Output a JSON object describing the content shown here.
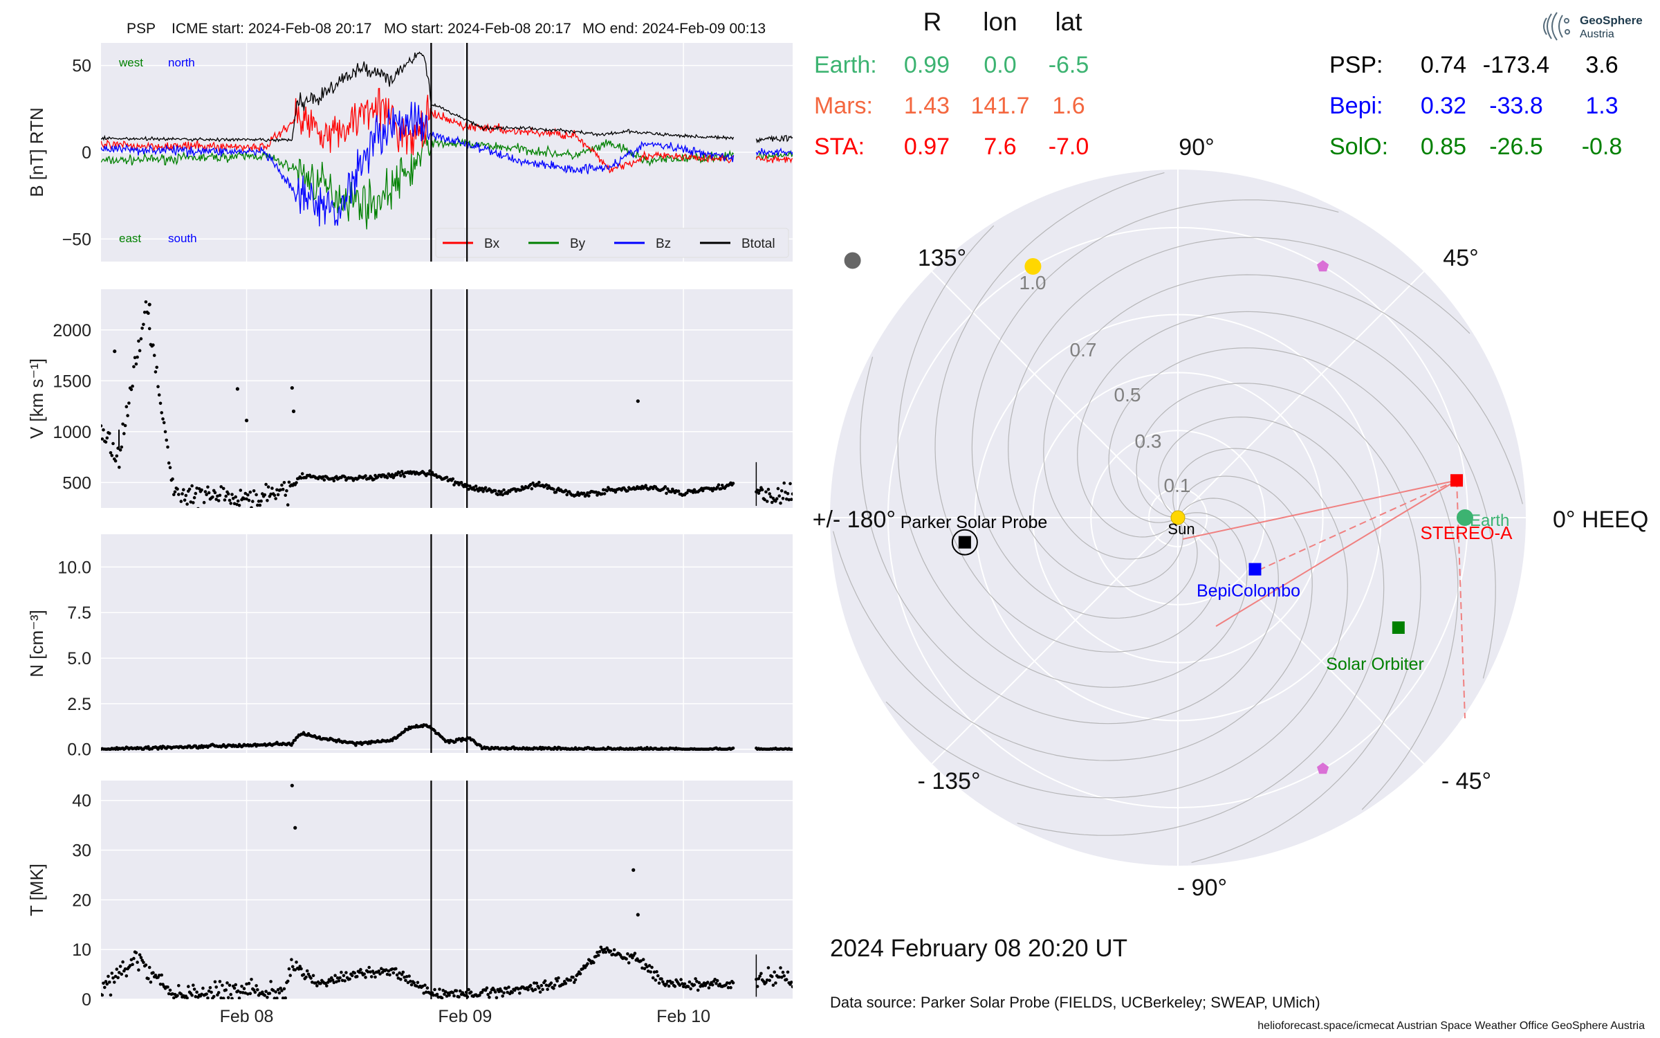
{
  "header": {
    "spacecraft": "PSP",
    "icme_start": "ICME start: 2024-Feb-08 20:17",
    "mo_start": "MO start: 2024-Feb-08 20:17",
    "mo_end": "MO end: 2024-Feb-09 00:13"
  },
  "logo": {
    "line1": "GeoSphere",
    "line2": "Austria"
  },
  "positions_table": {
    "columns": [
      "R",
      "lon",
      "lat"
    ],
    "left": [
      {
        "name": "Earth:",
        "r": "0.99",
        "lon": "0.0",
        "lat": "-6.5",
        "color": "#3cb371"
      },
      {
        "name": "Mars:",
        "r": "1.43",
        "lon": "141.7",
        "lat": "1.6",
        "color": "#f4673f"
      },
      {
        "name": "STA:",
        "r": "0.97",
        "lon": "7.6",
        "lat": "-7.0",
        "color": "#ff0000"
      }
    ],
    "right": [
      {
        "name": "PSP:",
        "r": "0.74",
        "lon": "-173.4",
        "lat": "3.6",
        "color": "#000000"
      },
      {
        "name": "Bepi:",
        "r": "0.32",
        "lon": "-33.8",
        "lat": "1.3",
        "color": "#0000ff"
      },
      {
        "name": "SolO:",
        "r": "0.85",
        "lon": "-26.5",
        "lat": "-0.8",
        "color": "#008000"
      }
    ]
  },
  "footer": {
    "timestamp": "2024 February 08  20:20 UT",
    "data_source": "Data source: Parker Solar Probe (FIELDS, UCBerkeley; SWEAP, UMich)",
    "credits": "helioforecast.space/icmecat   Austrian Space Weather Office   GeoSphere Austria"
  },
  "colors": {
    "bx": "#ff0000",
    "by": "#008000",
    "bz": "#0000ff",
    "btotal": "#000000",
    "panel_bg": "#eaeaf2",
    "grid": "#ffffff"
  },
  "chart_data": [
    {
      "type": "line",
      "xlabel": "",
      "ylabel": "B [nT] RTN",
      "x_range": [
        "2024-02-07 08:00",
        "2024-02-10 12:00"
      ],
      "ylim": [
        -63,
        63
      ],
      "yticks": [
        -50,
        0,
        50
      ],
      "xticks": [
        "Feb 08",
        "Feb 09",
        "Feb 10"
      ],
      "annotations": {
        "west": "west",
        "north": "north",
        "east": "east",
        "south": "south"
      },
      "event_lines": [
        "2024-02-08 20:17",
        "2024-02-09 00:13"
      ],
      "legend": {
        "placement": "bottom-right",
        "entries": [
          "Bx",
          "By",
          "Bz",
          "Btotal"
        ]
      },
      "series": [
        {
          "name": "Btotal",
          "color": "#000000",
          "x": [
            "02-07 08:00",
            "02-08 02:00",
            "02-08 05:00",
            "02-08 05:30",
            "02-08 08:00",
            "02-08 10:00",
            "02-08 13:00",
            "02-08 16:00",
            "02-08 18:00",
            "02-08 19:30",
            "02-08 20:17",
            "02-08 22:00",
            "02-09 02:00",
            "02-09 06:00",
            "02-09 12:00",
            "02-09 15:00",
            "02-09 18:00",
            "02-09 22:00",
            "02-10 05:30"
          ],
          "values": [
            8,
            7,
            7,
            28,
            32,
            40,
            49,
            42,
            55,
            57,
            28,
            24,
            14,
            14,
            12,
            10,
            12,
            10,
            8
          ]
        },
        {
          "name": "Bx",
          "color": "#ff0000",
          "x": [
            "02-07 08:00",
            "02-08 02:00",
            "02-08 05:30",
            "02-08 10:00",
            "02-08 14:00",
            "02-08 18:00",
            "02-08 20:17",
            "02-09 00:00",
            "02-09 06:00",
            "02-09 12:00",
            "02-09 16:00",
            "02-09 20:00",
            "02-10 05:30"
          ],
          "values": [
            4,
            3,
            20,
            10,
            30,
            5,
            22,
            15,
            12,
            10,
            -10,
            -2,
            -4
          ]
        },
        {
          "name": "By",
          "color": "#008000",
          "x": [
            "02-07 08:00",
            "02-08 02:00",
            "02-08 05:30",
            "02-08 10:00",
            "02-08 14:00",
            "02-08 18:00",
            "02-08 20:17",
            "02-09 00:00",
            "02-09 06:00",
            "02-09 12:00",
            "02-09 16:00",
            "02-09 20:00",
            "02-10 05:30"
          ],
          "values": [
            -5,
            -2,
            -10,
            -25,
            -30,
            -10,
            5,
            5,
            2,
            -2,
            5,
            -5,
            -2
          ]
        },
        {
          "name": "Bz",
          "color": "#0000ff",
          "x": [
            "02-07 08:00",
            "02-08 02:00",
            "02-08 05:30",
            "02-08 10:00",
            "02-08 14:00",
            "02-08 18:00",
            "02-08 20:17",
            "02-09 00:00",
            "02-09 06:00",
            "02-09 12:00",
            "02-09 16:00",
            "02-09 20:00",
            "02-10 05:30"
          ],
          "values": [
            2,
            0,
            -25,
            -35,
            10,
            20,
            10,
            5,
            -5,
            -10,
            -8,
            5,
            -3
          ]
        }
      ]
    },
    {
      "type": "scatter",
      "ylabel": "V [km s⁻¹]",
      "ylim": [
        250,
        2400
      ],
      "yticks": [
        500,
        1000,
        1500,
        2000
      ],
      "series": [
        {
          "name": "",
          "x": [
            "02-07 08:00",
            "02-07 10:00",
            "02-07 13:00",
            "02-07 16:00",
            "02-07 20:00",
            "02-08 00:00",
            "02-08 04:00",
            "02-08 06:00",
            "02-08 10:00",
            "02-08 14:00",
            "02-08 18:00",
            "02-08 20:17",
            "02-09 00:00",
            "02-09 04:00",
            "02-09 08:00",
            "02-09 12:00",
            "02-09 16:00",
            "02-09 20:00",
            "02-10 00:00",
            "02-10 05:30"
          ],
          "values": [
            1020,
            760,
            2250,
            380,
            360,
            330,
            380,
            560,
            540,
            550,
            600,
            590,
            460,
            400,
            480,
            380,
            420,
            450,
            400,
            480
          ]
        },
        {
          "name": "outliers",
          "x": [
            "02-07 09:30",
            "02-07 13:20",
            "02-07 23:00",
            "02-08 00:00",
            "02-08 05:00",
            "02-08 05:10",
            "02-09 19:00"
          ],
          "values": [
            1790,
            2250,
            1420,
            1110,
            1430,
            1200,
            1300
          ]
        }
      ]
    },
    {
      "type": "scatter",
      "ylabel": "N [cm⁻³]",
      "ylim": [
        -0.2,
        11.8
      ],
      "yticks": [
        0.0,
        2.5,
        5.0,
        7.5,
        10.0
      ],
      "series": [
        {
          "name": "",
          "x": [
            "02-07 08:00",
            "02-08 05:00",
            "02-08 06:00",
            "02-08 08:00",
            "02-08 12:00",
            "02-08 16:00",
            "02-08 18:00",
            "02-08 20:00",
            "02-08 22:00",
            "02-09 00:30",
            "02-09 02:00",
            "02-10 05:30"
          ],
          "values": [
            0,
            0.3,
            0.9,
            0.6,
            0.3,
            0.5,
            1.2,
            1.3,
            0.4,
            0.6,
            0.05,
            0
          ]
        }
      ]
    },
    {
      "type": "scatter",
      "ylabel": "T [MK]",
      "ylim": [
        0,
        44
      ],
      "yticks": [
        0,
        10,
        20,
        30,
        40
      ],
      "series": [
        {
          "name": "",
          "x": [
            "02-07 08:00",
            "02-07 12:00",
            "02-07 16:00",
            "02-07 20:00",
            "02-08 00:00",
            "02-08 04:00",
            "02-08 05:00",
            "02-08 08:00",
            "02-08 12:00",
            "02-08 16:00",
            "02-08 20:17",
            "02-09 00:00",
            "02-09 06:00",
            "02-09 12:00",
            "02-09 15:00",
            "02-09 19:00",
            "02-09 22:00",
            "02-10 05:30"
          ],
          "values": [
            2,
            8,
            1,
            1,
            2,
            1,
            7,
            3,
            5,
            6,
            1,
            1,
            2,
            4,
            10,
            8,
            3,
            3
          ]
        },
        {
          "name": "outliers",
          "x": [
            "02-08 05:00",
            "02-08 05:20",
            "02-09 18:30",
            "02-09 19:00"
          ],
          "values": [
            43,
            34.5,
            26,
            17
          ]
        }
      ]
    },
    {
      "type": "scatter",
      "title": "",
      "description_axis": "polar HEEQ longitude, radius in AU",
      "angle_labels": [
        "0° HEEQ",
        "45°",
        "90°",
        "135°",
        "+/- 180°",
        "- 135°",
        "- 90°",
        "- 45°"
      ],
      "radial_ticks": [
        "0.1",
        "0.3",
        "0.5",
        "0.7",
        "1.0"
      ],
      "rlim": [
        0,
        1.2
      ],
      "points": [
        {
          "name": "Sun",
          "r": 0.0,
          "lon": 0.0,
          "color": "#ffd700",
          "marker": "circle"
        },
        {
          "name": "Earth",
          "r": 0.99,
          "lon": 0.0,
          "color": "#3cb371",
          "marker": "circle"
        },
        {
          "name": "STEREO-A",
          "r": 0.97,
          "lon": 7.6,
          "color": "#ff0000",
          "marker": "square"
        },
        {
          "name": "BepiColombo",
          "r": 0.32,
          "lon": -33.8,
          "color": "#0000ff",
          "marker": "square"
        },
        {
          "name": "Solar Orbiter",
          "r": 0.85,
          "lon": -26.5,
          "color": "#008000",
          "marker": "square"
        },
        {
          "name": "Parker Solar Probe",
          "r": 0.74,
          "lon": -173.4,
          "color": "#000000",
          "marker": "square"
        },
        {
          "name": "",
          "r": 1.43,
          "lon": 141.7,
          "color": "#666666",
          "marker": "circle"
        },
        {
          "name": "",
          "r": 1.0,
          "lon": 120.0,
          "color": "#ffd700",
          "marker": "circle"
        },
        {
          "name": "",
          "r": 1.0,
          "lon": 60.0,
          "color": "#da70d6",
          "marker": "pentagon"
        },
        {
          "name": "",
          "r": 1.0,
          "lon": -60.0,
          "color": "#da70d6",
          "marker": "pentagon"
        }
      ]
    }
  ]
}
